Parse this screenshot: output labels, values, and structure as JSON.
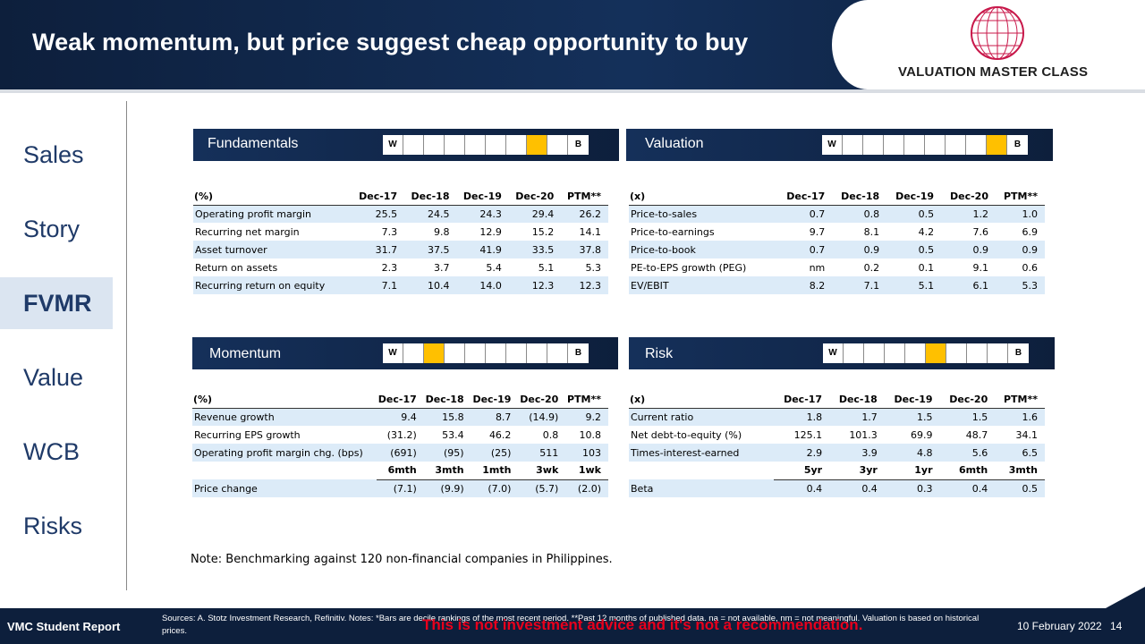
{
  "header": {
    "title": "Weak momentum, but price suggest cheap opportunity to buy",
    "logo_text": "VALUATION MASTER CLASS"
  },
  "sidebar": {
    "items": [
      {
        "label": "Sales"
      },
      {
        "label": "Story"
      },
      {
        "label": "FVMR"
      },
      {
        "label": "Value"
      },
      {
        "label": "WCB"
      },
      {
        "label": "Risks"
      }
    ],
    "active": "FVMR"
  },
  "decile_scale": {
    "left": "W",
    "right": "B",
    "highlight_color": "#ffc000"
  },
  "fundamentals": {
    "title": "Fundamentals",
    "decile_highlight": 7,
    "header": [
      "(%)",
      "Dec-17",
      "Dec-18",
      "Dec-19",
      "Dec-20",
      "PTM**"
    ],
    "rows": [
      [
        "Operating profit margin",
        "25.5",
        "24.5",
        "24.3",
        "29.4",
        "26.2"
      ],
      [
        "Recurring net margin",
        "7.3",
        "9.8",
        "12.9",
        "15.2",
        "14.1"
      ],
      [
        "Asset turnover",
        "31.7",
        "37.5",
        "41.9",
        "33.5",
        "37.8"
      ],
      [
        "Return on assets",
        "2.3",
        "3.7",
        "5.4",
        "5.1",
        "5.3"
      ],
      [
        "Recurring return on equity",
        "7.1",
        "10.4",
        "14.0",
        "12.3",
        "12.3"
      ]
    ]
  },
  "valuation": {
    "title": "Valuation",
    "decile_highlight": 8,
    "header": [
      "(x)",
      "Dec-17",
      "Dec-18",
      "Dec-19",
      "Dec-20",
      "PTM**"
    ],
    "rows": [
      [
        "Price-to-sales",
        "0.7",
        "0.8",
        "0.5",
        "1.2",
        "1.0"
      ],
      [
        "Price-to-earnings",
        "9.7",
        "8.1",
        "4.2",
        "7.6",
        "6.9"
      ],
      [
        "Price-to-book",
        "0.7",
        "0.9",
        "0.5",
        "0.9",
        "0.9"
      ],
      [
        "PE-to-EPS growth (PEG)",
        "nm",
        "0.2",
        "0.1",
        "9.1",
        "0.6"
      ],
      [
        "EV/EBIT",
        "8.2",
        "7.1",
        "5.1",
        "6.1",
        "5.3"
      ]
    ]
  },
  "momentum": {
    "title": "Momentum",
    "decile_highlight": 2,
    "header": [
      "(%)",
      "Dec-17",
      "Dec-18",
      "Dec-19",
      "Dec-20",
      "PTM**"
    ],
    "rows": [
      [
        "Revenue growth",
        "9.4",
        "15.8",
        "8.7",
        "(14.9)",
        "9.2"
      ],
      [
        "Recurring EPS growth",
        "(31.2)",
        "53.4",
        "46.2",
        "0.8",
        "10.8"
      ],
      [
        "Operating profit margin chg. (bps)",
        "(691)",
        "(95)",
        "(25)",
        "511",
        "103"
      ]
    ],
    "subheader": [
      "",
      "6mth",
      "3mth",
      "1mth",
      "3wk",
      "1wk"
    ],
    "subrows": [
      [
        "Price change",
        "(7.1)",
        "(9.9)",
        "(7.0)",
        "(5.7)",
        "(2.0)"
      ]
    ]
  },
  "risk": {
    "title": "Risk",
    "decile_highlight": 5,
    "header": [
      "(x)",
      "Dec-17",
      "Dec-18",
      "Dec-19",
      "Dec-20",
      "PTM**"
    ],
    "rows": [
      [
        "Current ratio",
        "1.8",
        "1.7",
        "1.5",
        "1.5",
        "1.6"
      ],
      [
        "Net debt-to-equity (%)",
        "125.1",
        "101.3",
        "69.9",
        "48.7",
        "34.1"
      ],
      [
        "Times-interest-earned",
        "2.9",
        "3.9",
        "4.8",
        "5.6",
        "6.5"
      ]
    ],
    "subheader": [
      "",
      "5yr",
      "3yr",
      "1yr",
      "6mth",
      "3mth"
    ],
    "subrows": [
      [
        "Beta",
        "0.4",
        "0.4",
        "0.3",
        "0.4",
        "0.5"
      ]
    ]
  },
  "note": "Note: Benchmarking against 120 non-financial companies in Philippines.",
  "footer": {
    "brand": "VMC Student Report",
    "sources": "Sources: A. Stotz Investment Research, Refinitiv. Notes: *Bars are decile rankings of the most recent period. **Past 12 months of published data. na = not available, nm = not meaningful. Valuation is based on historical prices.",
    "warning": "This is not investment advice and it's not a recommendation.",
    "date": "10 February 2022",
    "page": "14"
  }
}
